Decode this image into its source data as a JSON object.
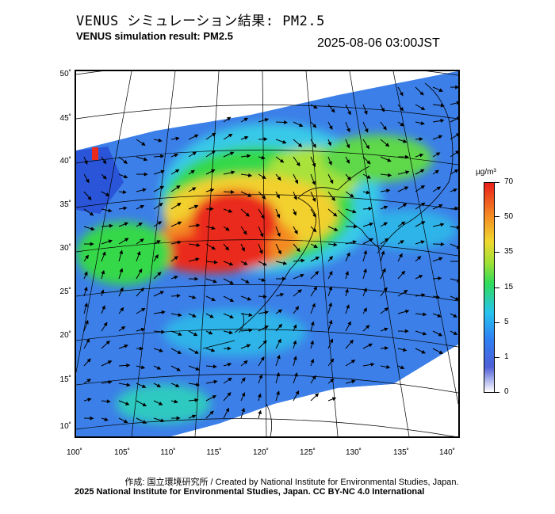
{
  "header": {
    "title_jp": "VENUS シミュレーション結果: PM2.5",
    "title_en": "VENUS simulation result: PM2.5",
    "timestamp": "2025-08-06 03:00JST"
  },
  "map": {
    "lat_labels": [
      "50˚",
      "45˚",
      "40˚",
      "35˚",
      "30˚",
      "25˚",
      "20˚",
      "15˚",
      "10˚"
    ],
    "lon_labels": [
      "100˚",
      "105˚",
      "110˚",
      "115˚",
      "120˚",
      "125˚",
      "130˚",
      "135˚",
      "140˚"
    ],
    "variable": "PM2.5",
    "colors": {
      "background": "#ffffff",
      "low": "#4e5fd6",
      "high": "#ea1f1a"
    }
  },
  "colorbar": {
    "unit": "µg/m³",
    "labels": [
      "70",
      "50",
      "35",
      "15",
      "5",
      "1",
      "0"
    ]
  },
  "footer": {
    "credit_jp": "作成: 国立環境研究所 / Created by National Institute for Environmental Studies, Japan.",
    "credit_en": "2025 National Institute for Environmental Studies, Japan. CC BY-NC 4.0 International"
  }
}
